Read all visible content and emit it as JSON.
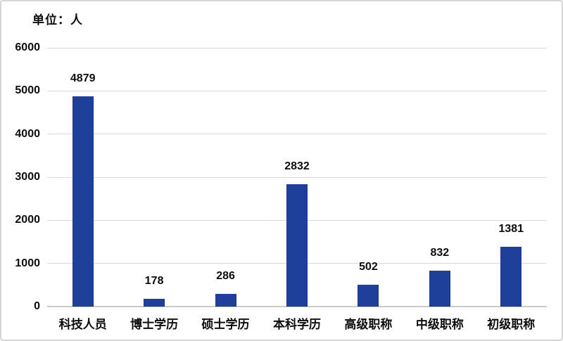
{
  "page": {
    "unit_label": "单位：人"
  },
  "chart_data": {
    "type": "bar",
    "title": "单位：人",
    "categories": [
      "科技人员",
      "博士学历",
      "硕士学历",
      "本科学历",
      "高级职称",
      "中级职称",
      "初级职称"
    ],
    "values": [
      4879,
      178,
      286,
      2832,
      502,
      832,
      1381
    ],
    "xlabel": "",
    "ylabel": "",
    "ylim": [
      0,
      6000
    ],
    "yticks": [
      0,
      1000,
      2000,
      3000,
      4000,
      5000,
      6000
    ],
    "grid": true,
    "legend": "none",
    "data_labels": true,
    "bar_color": "#1f409a",
    "bar_edge_color": "#16337f",
    "gridline_color": "#d9d9d9",
    "axis_line_color": "#c9c9c9",
    "text_color": "#0d0d0d",
    "background_color": "#ffffff",
    "frame_border_color": "#d5d5d5"
  }
}
